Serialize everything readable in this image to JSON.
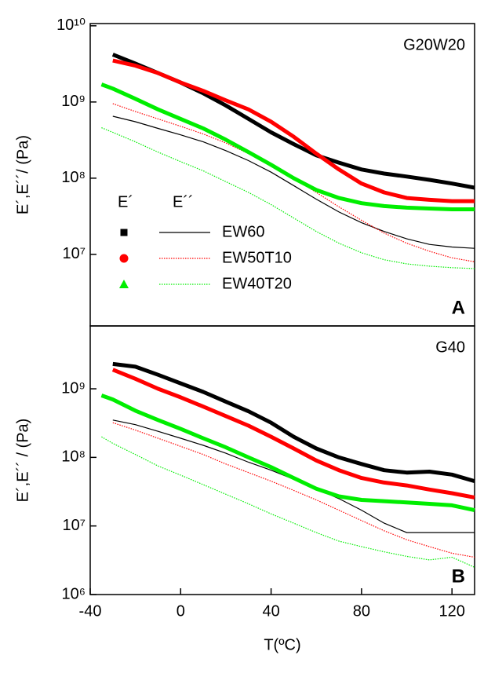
{
  "chart_data": [
    {
      "type": "line",
      "panel": "A",
      "sample": "G20W20",
      "ylabel": "E´,E´´/ (Pa)",
      "log_y": true,
      "xlim": [
        -40,
        130
      ],
      "ylim": [
        1150000,
        10700000000
      ],
      "yticks": [
        {
          "value": 10000000,
          "label": "10⁷"
        },
        {
          "value": 100000000,
          "label": "10⁸"
        },
        {
          "value": 1000000000,
          "label": "10⁹"
        },
        {
          "value": 10000000000,
          "label": "10¹⁰"
        }
      ],
      "legend_headers": [
        "E´",
        "E´´"
      ],
      "x": [
        -35,
        -30,
        -20,
        -10,
        0,
        10,
        20,
        30,
        40,
        50,
        60,
        70,
        80,
        90,
        100,
        110,
        120,
        130
      ],
      "series": [
        {
          "name": "EW60",
          "color": "#000000",
          "marker": "square",
          "loss_style": "solid",
          "storage": [
            null,
            4200000000,
            3200000000,
            2400000000,
            1800000000,
            1300000000,
            900000000,
            600000000,
            400000000,
            280000000,
            200000000,
            160000000,
            130000000,
            115000000,
            105000000,
            95000000,
            85000000,
            75000000
          ],
          "loss": [
            null,
            650000000,
            550000000,
            450000000,
            370000000,
            300000000,
            230000000,
            170000000,
            120000000,
            80000000,
            53000000,
            36000000,
            26000000,
            20000000,
            16000000,
            13500000,
            12500000,
            12000000
          ]
        },
        {
          "name": "EW50T10",
          "color": "#ff0000",
          "marker": "circle",
          "loss_style": "dotted",
          "storage": [
            null,
            3500000000,
            3000000000,
            2400000000,
            1800000000,
            1400000000,
            1050000000,
            800000000,
            550000000,
            350000000,
            210000000,
            130000000,
            85000000,
            65000000,
            55000000,
            52000000,
            50000000,
            50000000
          ],
          "loss": [
            null,
            950000000,
            750000000,
            600000000,
            480000000,
            380000000,
            290000000,
            210000000,
            150000000,
            100000000,
            65000000,
            42000000,
            28000000,
            19000000,
            14000000,
            11000000,
            9000000,
            8000000
          ]
        },
        {
          "name": "EW40T20",
          "color": "#00ee00",
          "marker": "triangle",
          "loss_style": "dotted",
          "storage": [
            1700000000,
            1500000000,
            1100000000,
            800000000,
            600000000,
            450000000,
            320000000,
            220000000,
            150000000,
            100000000,
            70000000,
            55000000,
            47000000,
            43000000,
            41000000,
            40000000,
            39000000,
            39000000
          ],
          "loss": [
            460000000,
            400000000,
            300000000,
            220000000,
            165000000,
            125000000,
            90000000,
            65000000,
            45000000,
            30000000,
            20000000,
            14000000,
            10500000,
            8500000,
            7500000,
            7000000,
            6700000,
            6500000
          ]
        }
      ]
    },
    {
      "type": "line",
      "panel": "B",
      "sample": "G40",
      "ylabel": "E´,E´´ / (Pa)",
      "xlabel": "T(ºC)",
      "log_y": true,
      "xlim": [
        -40,
        130
      ],
      "ylim": [
        1000000,
        8250000000
      ],
      "xticks": [
        -40,
        0,
        40,
        80,
        120
      ],
      "yticks": [
        {
          "value": 1000000,
          "label": "10⁶"
        },
        {
          "value": 10000000,
          "label": "10⁷"
        },
        {
          "value": 100000000,
          "label": "10⁸"
        },
        {
          "value": 1000000000,
          "label": "10⁹"
        }
      ],
      "x": [
        -35,
        -30,
        -20,
        -10,
        0,
        10,
        20,
        30,
        40,
        50,
        60,
        70,
        80,
        90,
        100,
        110,
        120,
        130
      ],
      "series": [
        {
          "color": "#000000",
          "loss_style": "solid",
          "storage": [
            null,
            2300000000,
            2100000000,
            1600000000,
            1200000000,
            900000000,
            650000000,
            470000000,
            320000000,
            200000000,
            135000000,
            100000000,
            80000000,
            65000000,
            60000000,
            62000000,
            56000000,
            45000000
          ],
          "loss": [
            null,
            350000000,
            300000000,
            240000000,
            190000000,
            150000000,
            115000000,
            85000000,
            65000000,
            48000000,
            35000000,
            25000000,
            17000000,
            11000000,
            8000000,
            8000000,
            8000000,
            8000000
          ]
        },
        {
          "color": "#ff0000",
          "loss_style": "dotted",
          "storage": [
            null,
            1900000000,
            1400000000,
            1000000000,
            750000000,
            550000000,
            400000000,
            290000000,
            200000000,
            135000000,
            90000000,
            65000000,
            50000000,
            43000000,
            39000000,
            34000000,
            30000000,
            26000000
          ],
          "loss": [
            null,
            320000000,
            250000000,
            190000000,
            145000000,
            110000000,
            80000000,
            60000000,
            45000000,
            33000000,
            24000000,
            17000000,
            12000000,
            8500000,
            6300000,
            5000000,
            4000000,
            3500000
          ]
        },
        {
          "color": "#00ee00",
          "loss_style": "dotted",
          "storage": [
            800000000,
            700000000,
            480000000,
            350000000,
            260000000,
            190000000,
            140000000,
            100000000,
            72000000,
            50000000,
            35000000,
            27000000,
            24000000,
            23000000,
            22000000,
            21000000,
            20000000,
            17000000
          ],
          "loss": [
            200000000,
            160000000,
            110000000,
            75000000,
            55000000,
            40000000,
            29000000,
            21000000,
            15000000,
            11000000,
            8000000,
            6000000,
            5000000,
            4200000,
            3600000,
            3200000,
            3500000,
            2500000
          ]
        }
      ]
    }
  ]
}
